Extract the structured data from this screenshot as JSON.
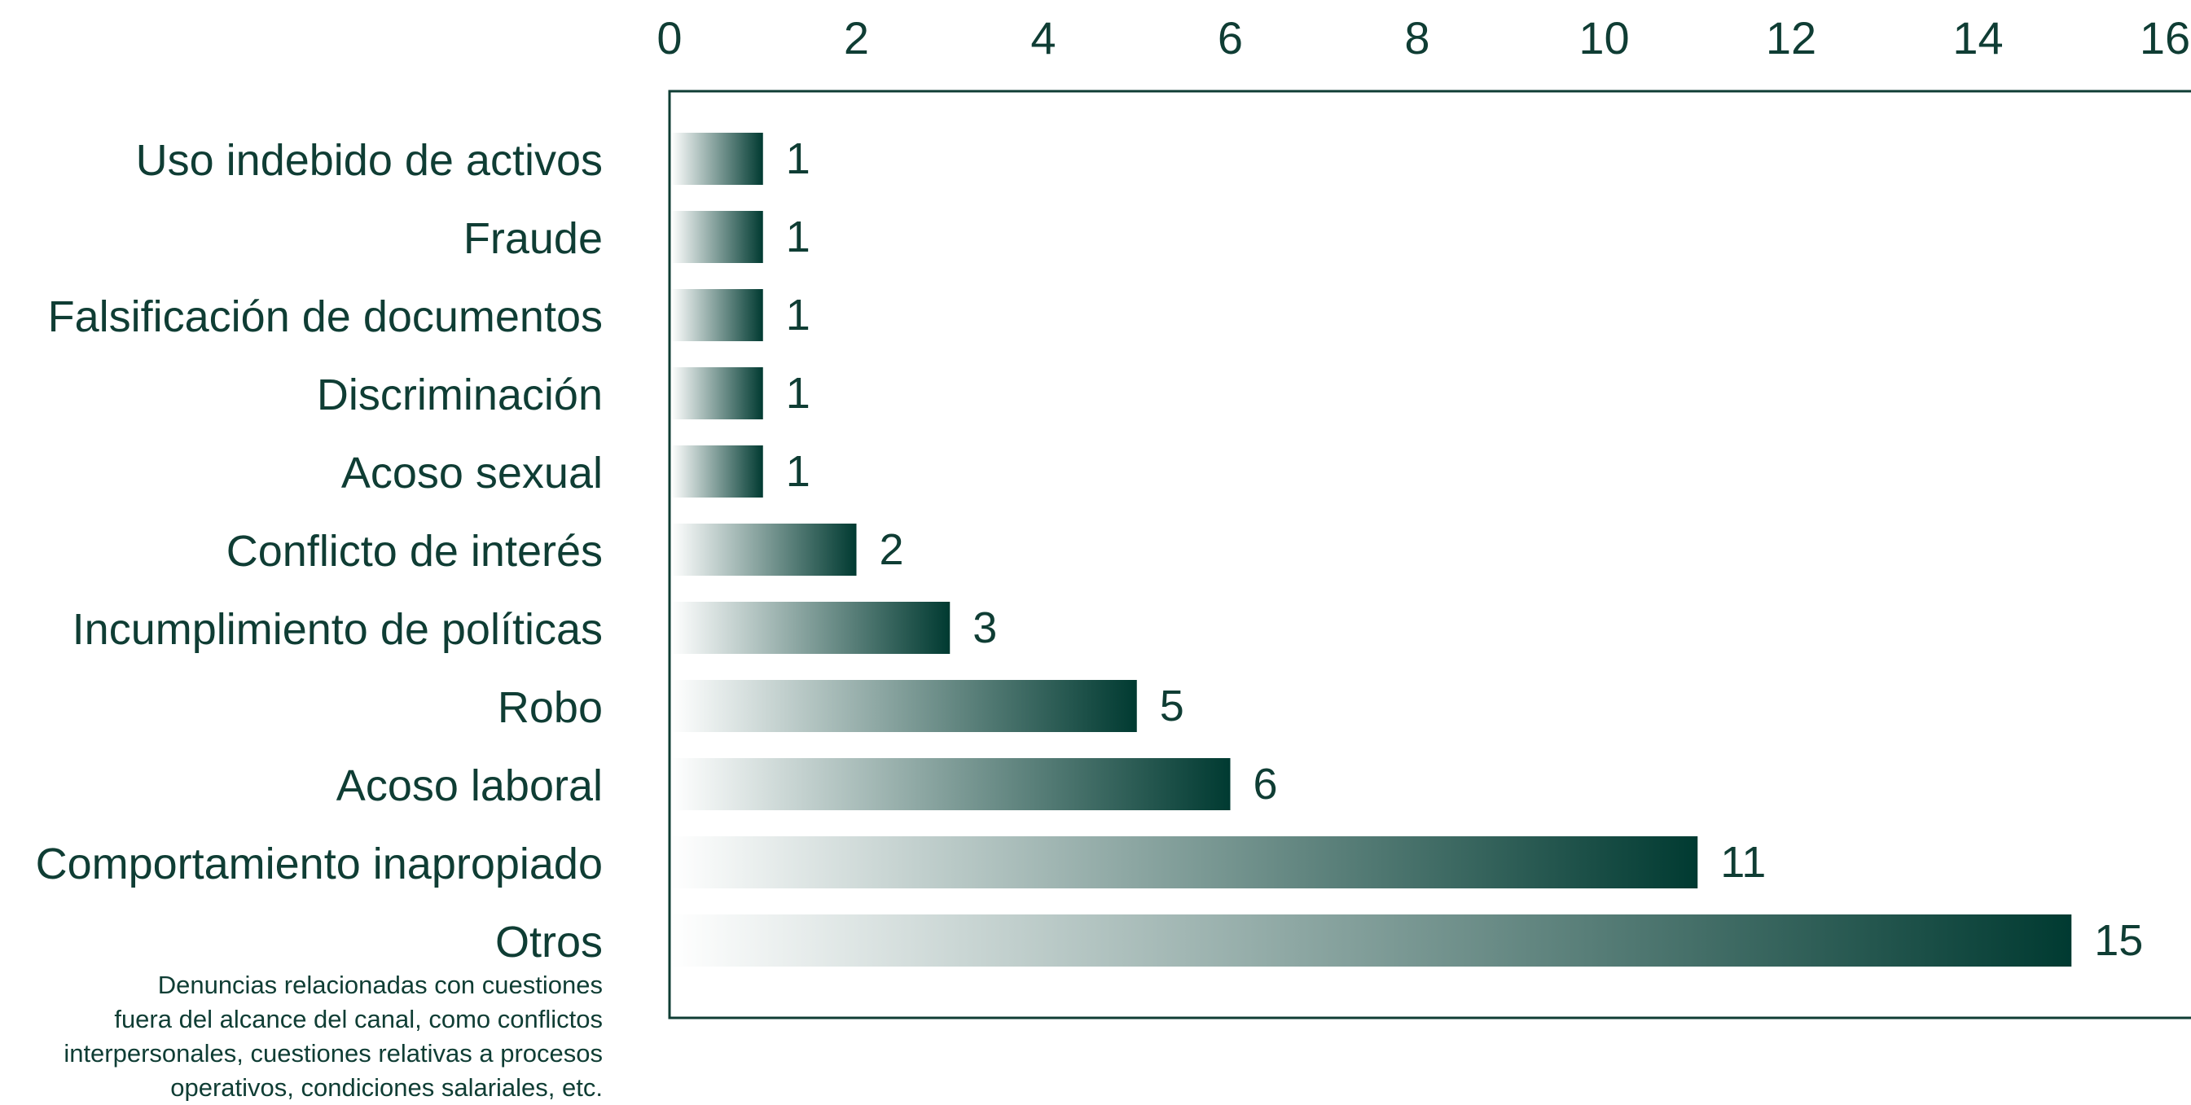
{
  "chart_data": {
    "type": "bar",
    "orientation": "horizontal",
    "categories": [
      "Uso indebido de activos",
      "Fraude",
      "Falsificación de documentos",
      "Discriminación",
      "Acoso sexual",
      "Conflicto de interés",
      "Incumplimiento de políticas",
      "Robo",
      "Acoso laboral",
      "Comportamiento inapropiado",
      "Otros"
    ],
    "values": [
      1,
      1,
      1,
      1,
      1,
      2,
      3,
      5,
      6,
      11,
      15
    ],
    "data_labels": [
      "1",
      "1",
      "1",
      "1",
      "1",
      "2",
      "3",
      "5",
      "6",
      "11",
      "15"
    ],
    "x_ticks": [
      "0",
      "2",
      "4",
      "6",
      "8",
      "10",
      "12",
      "14",
      "16"
    ],
    "xlim": [
      0,
      16
    ],
    "x_axis_position": "top",
    "grid": false,
    "legend": "none",
    "bar_fill": "horizontal gradient from light to dark green",
    "colors": {
      "text": "#0f3d34",
      "bar_dark": "#003a31",
      "bar_light": "#ffffff",
      "axis": "#0f3d34"
    },
    "annotation": [
      "Denuncias relacionadas con cuestiones",
      "fuera del alcance del canal, como conflictos",
      "interpersonales, cuestiones relativas a procesos",
      "operativos, condiciones salariales, etc."
    ]
  }
}
